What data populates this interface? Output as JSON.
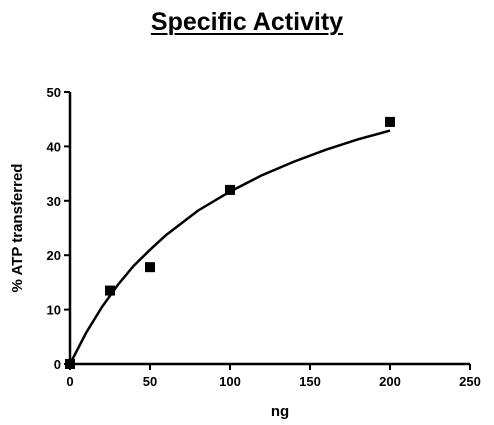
{
  "chart_data": {
    "type": "scatter",
    "title": "Specific Activity",
    "xlabel": "ng",
    "ylabel": "% ATP transferred",
    "xlim": [
      0,
      250
    ],
    "ylim": [
      0,
      50
    ],
    "x_ticks": [
      "0",
      "50",
      "100",
      "150",
      "200",
      "250"
    ],
    "y_ticks": [
      "0",
      "10",
      "20",
      "30",
      "40",
      "50"
    ],
    "grid": false,
    "series": [
      {
        "marker": "square",
        "x": [
          0,
          25,
          50,
          100,
          200
        ],
        "y": [
          0,
          13.5,
          17.8,
          32.0,
          44.5
        ]
      }
    ],
    "fit_curve": {
      "x": [
        0,
        10,
        20,
        30,
        40,
        50,
        60,
        80,
        100,
        120,
        140,
        160,
        180,
        200
      ],
      "y": [
        0,
        5.7,
        10.5,
        14.6,
        18.1,
        21.0,
        23.7,
        28.2,
        31.7,
        34.7,
        37.2,
        39.4,
        41.3,
        42.9
      ]
    },
    "colors": {
      "marks": "#000000"
    }
  }
}
